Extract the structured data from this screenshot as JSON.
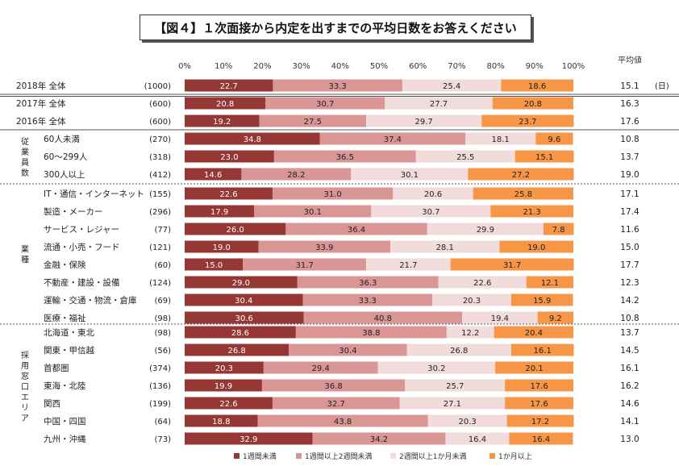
{
  "title": "【図４】１次面接から内定を出すまでの平均日数をお答えください",
  "chart_data": {
    "type": "bar",
    "stacked": "percent",
    "orientation": "horizontal",
    "title": "【図４】１次面接から内定を出すまでの平均日数をお答えください",
    "x_ticks": [
      "0%",
      "10%",
      "20%",
      "30%",
      "40%",
      "50%",
      "60%",
      "70%",
      "80%",
      "90%",
      "100%"
    ],
    "xlim": [
      0,
      100
    ],
    "avg_header": "平均値",
    "unit_label": "(日)",
    "series_names": [
      "1週間未満",
      "1週間以上2週間未満",
      "2週間以上1か月未満",
      "1か月以上"
    ],
    "colors": [
      "#953735",
      "#d99694",
      "#f2dcdb",
      "#f79646"
    ],
    "legend_position": "bottom",
    "groups": [
      {
        "label": ""
      },
      {
        "label": ""
      },
      {
        "label": "従業員数"
      },
      {
        "label": "業種"
      },
      {
        "label": "採用窓口エリア"
      }
    ],
    "rows": [
      {
        "label": "2018年 全体",
        "n": "(1000)",
        "values": [
          22.7,
          33.3,
          25.4,
          18.6
        ],
        "avg": "15.1",
        "group": 0
      },
      {
        "label": "2017年 全体",
        "n": "(600)",
        "values": [
          20.8,
          30.7,
          27.7,
          20.8
        ],
        "avg": "16.3",
        "group": 1
      },
      {
        "label": "2016年 全体",
        "n": "(600)",
        "values": [
          19.2,
          27.5,
          29.7,
          23.7
        ],
        "avg": "17.6",
        "group": 1
      },
      {
        "label": "60人未満",
        "n": "(270)",
        "values": [
          34.8,
          37.4,
          18.1,
          9.6
        ],
        "avg": "10.8",
        "group": 2
      },
      {
        "label": "60～299人",
        "n": "(318)",
        "values": [
          23.0,
          36.5,
          25.5,
          15.1
        ],
        "avg": "13.7",
        "group": 2
      },
      {
        "label": "300人以上",
        "n": "(412)",
        "values": [
          14.6,
          28.2,
          30.1,
          27.2
        ],
        "avg": "19.0",
        "group": 2
      },
      {
        "label": "IT・通信・インターネット",
        "n": "(155)",
        "values": [
          22.6,
          31.0,
          20.6,
          25.8
        ],
        "avg": "17.1",
        "group": 3
      },
      {
        "label": "製造・メーカー",
        "n": "(296)",
        "values": [
          17.9,
          30.1,
          30.7,
          21.3
        ],
        "avg": "17.4",
        "group": 3
      },
      {
        "label": "サービス・レジャー",
        "n": "(77)",
        "values": [
          26.0,
          36.4,
          29.9,
          7.8
        ],
        "avg": "11.6",
        "group": 3
      },
      {
        "label": "流通・小売・フード",
        "n": "(121)",
        "values": [
          19.0,
          33.9,
          28.1,
          19.0
        ],
        "avg": "15.0",
        "group": 3
      },
      {
        "label": "金融・保険",
        "n": "(60)",
        "values": [
          15.0,
          31.7,
          21.7,
          31.7
        ],
        "avg": "17.7",
        "group": 3
      },
      {
        "label": "不動産・建設・設備",
        "n": "(124)",
        "values": [
          29.0,
          36.3,
          22.6,
          12.1
        ],
        "avg": "12.3",
        "group": 3
      },
      {
        "label": "運輸・交通・物流・倉庫",
        "n": "(69)",
        "values": [
          30.4,
          33.3,
          20.3,
          15.9
        ],
        "avg": "14.2",
        "group": 3
      },
      {
        "label": "医療・福祉",
        "n": "(98)",
        "values": [
          30.6,
          40.8,
          19.4,
          9.2
        ],
        "avg": "10.8",
        "group": 3
      },
      {
        "label": "北海道・東北",
        "n": "(98)",
        "values": [
          28.6,
          38.8,
          12.2,
          20.4
        ],
        "avg": "13.7",
        "group": 4
      },
      {
        "label": "関東・甲信越",
        "n": "(56)",
        "values": [
          26.8,
          30.4,
          26.8,
          16.1
        ],
        "avg": "14.5",
        "group": 4
      },
      {
        "label": "首都圏",
        "n": "(374)",
        "values": [
          20.3,
          29.4,
          30.2,
          20.1
        ],
        "avg": "16.1",
        "group": 4
      },
      {
        "label": "東海・北陸",
        "n": "(136)",
        "values": [
          19.9,
          36.8,
          25.7,
          17.6
        ],
        "avg": "16.2",
        "group": 4
      },
      {
        "label": "関西",
        "n": "(199)",
        "values": [
          22.6,
          32.7,
          27.1,
          17.6
        ],
        "avg": "14.6",
        "group": 4
      },
      {
        "label": "中国・四国",
        "n": "(64)",
        "values": [
          18.8,
          43.8,
          20.3,
          17.2
        ],
        "avg": "14.1",
        "group": 4
      },
      {
        "label": "九州・沖縄",
        "n": "(73)",
        "values": [
          32.9,
          34.2,
          16.4,
          16.4
        ],
        "avg": "13.0",
        "group": 4
      }
    ]
  }
}
